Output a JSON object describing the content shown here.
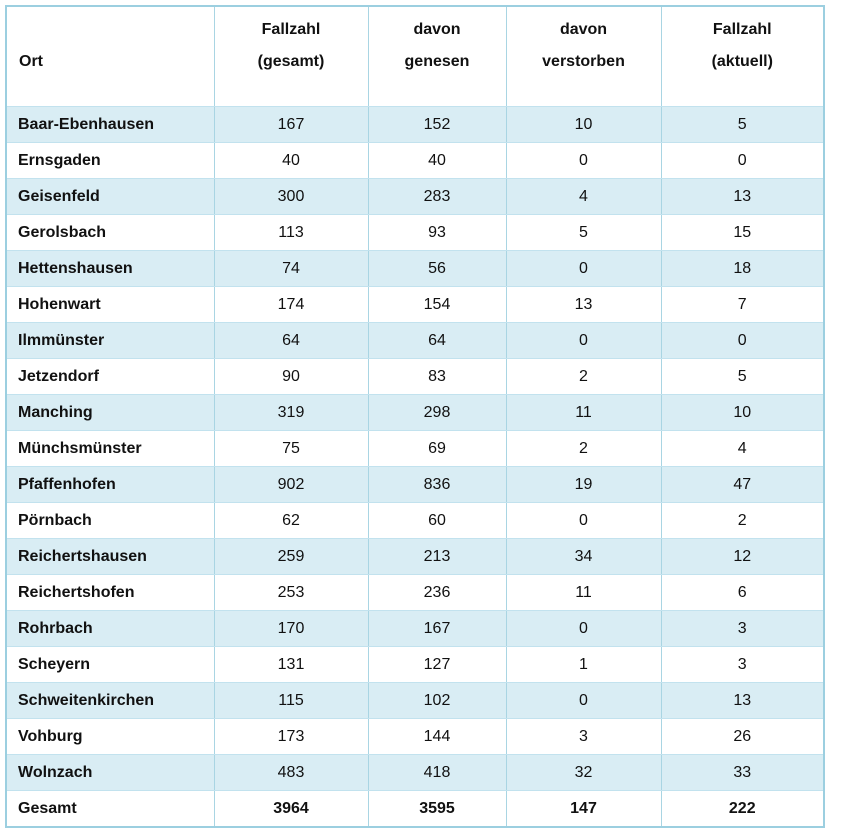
{
  "table": {
    "columns": [
      {
        "id": "ort",
        "line1": "",
        "line2": "Ort"
      },
      {
        "id": "fallzahl_gesamt",
        "line1": "Fallzahl",
        "line2": "(gesamt)"
      },
      {
        "id": "davon_genesen",
        "line1": "davon",
        "line2": "genesen"
      },
      {
        "id": "davon_verstorben",
        "line1": "davon",
        "line2": "verstorben"
      },
      {
        "id": "fallzahl_aktuell",
        "line1": "Fallzahl",
        "line2": "(aktuell)"
      }
    ],
    "rows": [
      {
        "ort": "Baar-Ebenhausen",
        "gesamt": "167",
        "genesen": "152",
        "verstorben": "10",
        "aktuell": "5"
      },
      {
        "ort": "Ernsgaden",
        "gesamt": "40",
        "genesen": "40",
        "verstorben": "0",
        "aktuell": "0"
      },
      {
        "ort": "Geisenfeld",
        "gesamt": "300",
        "genesen": "283",
        "verstorben": "4",
        "aktuell": "13"
      },
      {
        "ort": "Gerolsbach",
        "gesamt": "113",
        "genesen": "93",
        "verstorben": "5",
        "aktuell": "15"
      },
      {
        "ort": "Hettenshausen",
        "gesamt": "74",
        "genesen": "56",
        "verstorben": "0",
        "aktuell": "18"
      },
      {
        "ort": "Hohenwart",
        "gesamt": "174",
        "genesen": "154",
        "verstorben": "13",
        "aktuell": "7"
      },
      {
        "ort": "Ilmmünster",
        "gesamt": "64",
        "genesen": "64",
        "verstorben": "0",
        "aktuell": "0"
      },
      {
        "ort": "Jetzendorf",
        "gesamt": "90",
        "genesen": "83",
        "verstorben": "2",
        "aktuell": "5"
      },
      {
        "ort": "Manching",
        "gesamt": "319",
        "genesen": "298",
        "verstorben": "11",
        "aktuell": "10"
      },
      {
        "ort": "Münchsmünster",
        "gesamt": "75",
        "genesen": "69",
        "verstorben": "2",
        "aktuell": "4"
      },
      {
        "ort": "Pfaffenhofen",
        "gesamt": "902",
        "genesen": "836",
        "verstorben": "19",
        "aktuell": "47"
      },
      {
        "ort": "Pörnbach",
        "gesamt": "62",
        "genesen": "60",
        "verstorben": "0",
        "aktuell": "2"
      },
      {
        "ort": "Reichertshausen",
        "gesamt": "259",
        "genesen": "213",
        "verstorben": "34",
        "aktuell": "12"
      },
      {
        "ort": "Reichertshofen",
        "gesamt": "253",
        "genesen": "236",
        "verstorben": "11",
        "aktuell": "6"
      },
      {
        "ort": "Rohrbach",
        "gesamt": "170",
        "genesen": "167",
        "verstorben": "0",
        "aktuell": "3"
      },
      {
        "ort": "Scheyern",
        "gesamt": "131",
        "genesen": "127",
        "verstorben": "1",
        "aktuell": "3"
      },
      {
        "ort": "Schweitenkirchen",
        "gesamt": "115",
        "genesen": "102",
        "verstorben": "0",
        "aktuell": "13"
      },
      {
        "ort": "Vohburg",
        "gesamt": "173",
        "genesen": "144",
        "verstorben": "3",
        "aktuell": "26"
      },
      {
        "ort": "Wolnzach",
        "gesamt": "483",
        "genesen": "418",
        "verstorben": "32",
        "aktuell": "33"
      },
      {
        "ort": "Gesamt",
        "gesamt": "3964",
        "genesen": "3595",
        "verstorben": "147",
        "aktuell": "222",
        "is_total": true
      }
    ]
  },
  "colors": {
    "stripe": "#d9edf4",
    "inner_border": "#a9d5e3",
    "row_line": "#c2e2ee",
    "outer_border": "#9ccfe0",
    "text": "#111111",
    "background": "#ffffff"
  }
}
